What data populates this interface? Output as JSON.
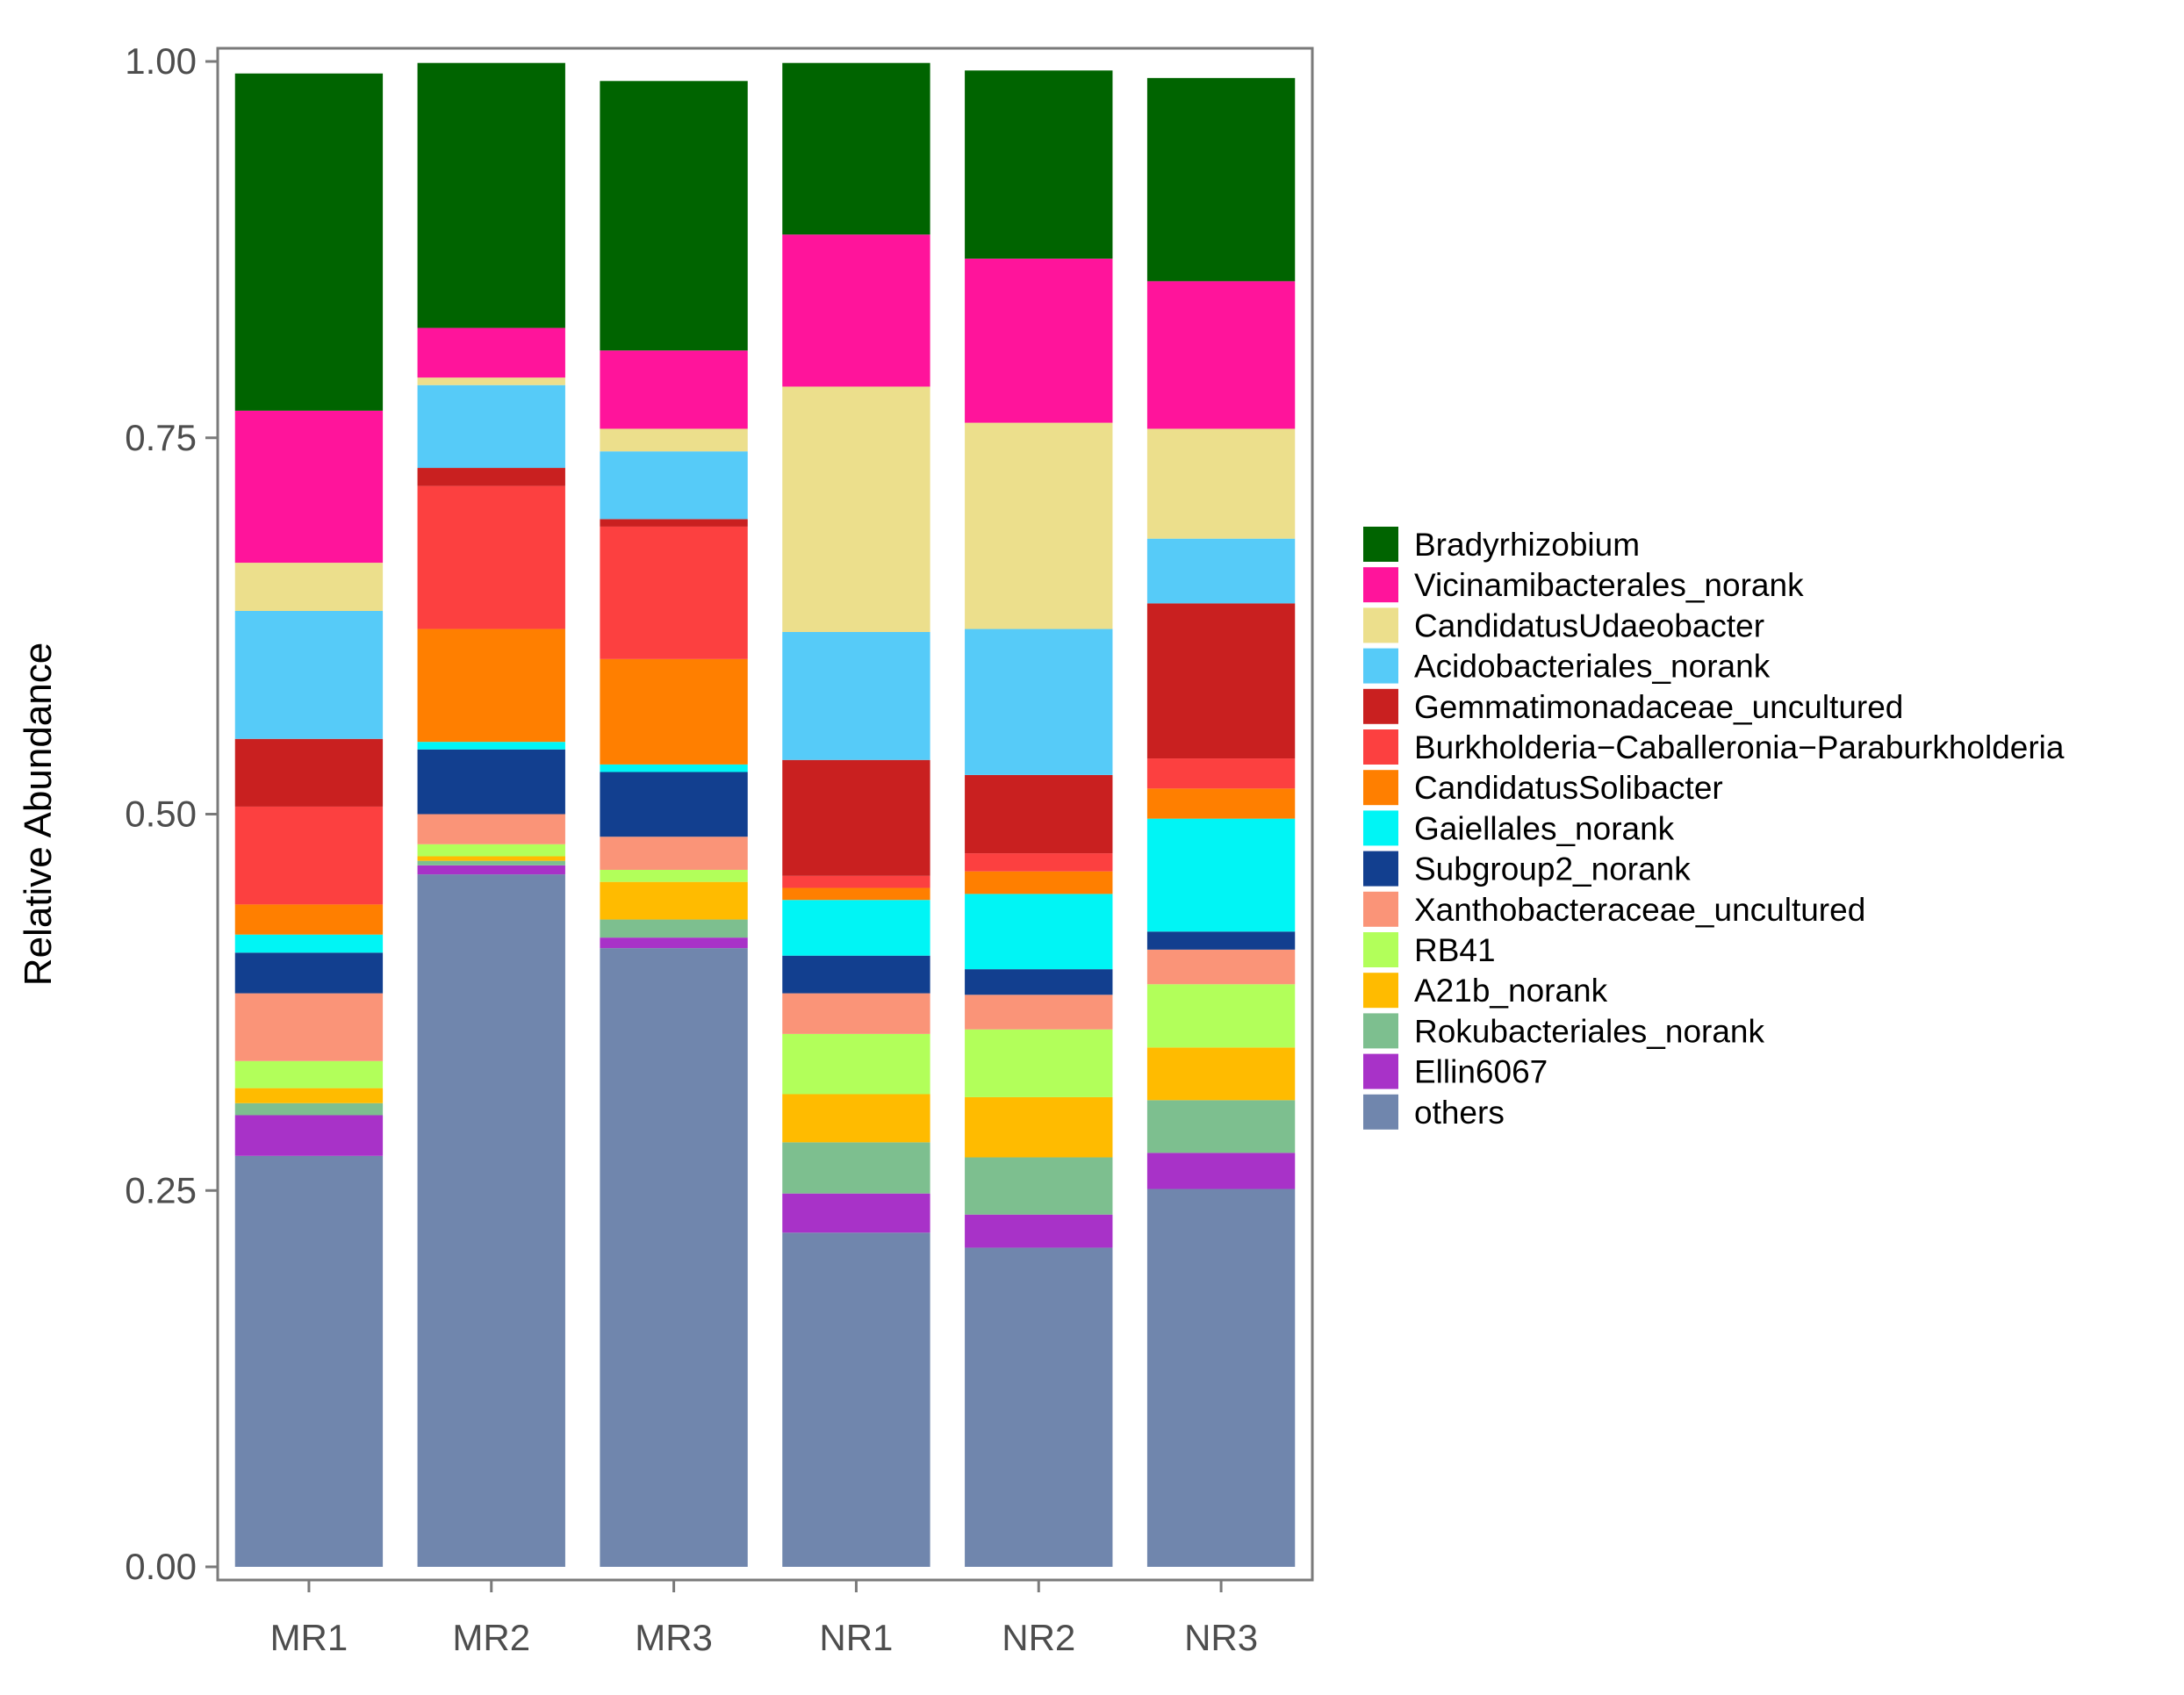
{
  "chart_data": {
    "type": "bar",
    "stacked": true,
    "title": "",
    "xlabel": "",
    "ylabel": "Relative Abundance",
    "ylim": [
      0,
      1
    ],
    "yticks": [
      "0.00",
      "0.25",
      "0.50",
      "0.75",
      "1.00"
    ],
    "ytick_values": [
      0,
      0.25,
      0.5,
      0.75,
      1.0
    ],
    "categories": [
      "MR1",
      "MR2",
      "MR3",
      "NR1",
      "NR2",
      "NR3"
    ],
    "legend_position": "right",
    "series": [
      {
        "name": "others",
        "color": "#7086ad",
        "values": [
          0.273,
          0.46,
          0.411,
          0.222,
          0.212,
          0.251
        ]
      },
      {
        "name": "Ellin6067",
        "color": "#a832c8",
        "values": [
          0.027,
          0.006,
          0.007,
          0.026,
          0.022,
          0.024
        ]
      },
      {
        "name": "Rokubacteriales_norank",
        "color": "#7dbf8f",
        "values": [
          0.008,
          0.003,
          0.012,
          0.034,
          0.038,
          0.035
        ]
      },
      {
        "name": "A21b_norank",
        "color": "#ffbb00",
        "values": [
          0.01,
          0.003,
          0.025,
          0.032,
          0.04,
          0.035
        ]
      },
      {
        "name": "RB41",
        "color": "#b2ff5a",
        "values": [
          0.018,
          0.008,
          0.008,
          0.04,
          0.045,
          0.042
        ]
      },
      {
        "name": "Xanthobacteraceae_uncultured",
        "color": "#fa9478",
        "values": [
          0.045,
          0.02,
          0.022,
          0.027,
          0.023,
          0.023
        ]
      },
      {
        "name": "Subgroup2_norank",
        "color": "#123f8f",
        "values": [
          0.027,
          0.043,
          0.043,
          0.025,
          0.017,
          0.012
        ]
      },
      {
        "name": "Gaiellales_norank",
        "color": "#00f5f5",
        "values": [
          0.012,
          0.005,
          0.005,
          0.037,
          0.05,
          0.075
        ]
      },
      {
        "name": "CandidatusSolibacter",
        "color": "#ff7f00",
        "values": [
          0.02,
          0.075,
          0.07,
          0.008,
          0.015,
          0.02
        ]
      },
      {
        "name": "Burkholderia−Caballeronia−Paraburkholderia",
        "color": "#fc4040",
        "values": [
          0.065,
          0.095,
          0.088,
          0.008,
          0.012,
          0.02
        ]
      },
      {
        "name": "Gemmatimonadaceae_uncultured",
        "color": "#c92020",
        "values": [
          0.045,
          0.012,
          0.005,
          0.077,
          0.052,
          0.103
        ]
      },
      {
        "name": "Acidobacteriales_norank",
        "color": "#56cbf8",
        "values": [
          0.085,
          0.055,
          0.045,
          0.085,
          0.097,
          0.043
        ]
      },
      {
        "name": "CandidatusUdaeobacter",
        "color": "#ecdf8c",
        "values": [
          0.032,
          0.005,
          0.015,
          0.163,
          0.137,
          0.073
        ]
      },
      {
        "name": "Vicinamibacterales_norank",
        "color": "#ff149b",
        "values": [
          0.101,
          0.033,
          0.052,
          0.101,
          0.109,
          0.098
        ]
      },
      {
        "name": "Bradyrhizobium",
        "color": "#006400",
        "values": [
          0.224,
          0.176,
          0.179,
          0.114,
          0.125,
          0.135
        ]
      }
    ]
  }
}
